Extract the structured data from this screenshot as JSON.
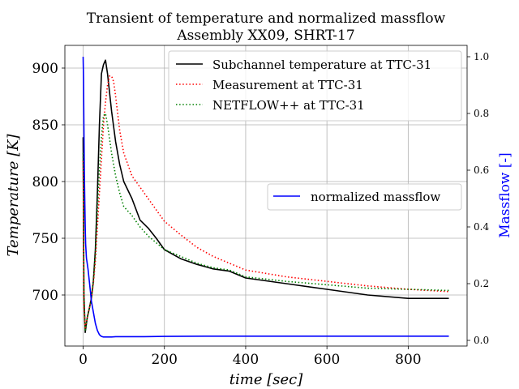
{
  "chart_data": {
    "type": "line",
    "title": "Transient of temperature and normalized massflow",
    "subtitle": "Assembly XX09, SHRT-17",
    "xlabel": "time [sec]",
    "ylabel": "Temperature [K]",
    "ylabel_right": "Massflow [-]",
    "xlim": [
      -45,
      945
    ],
    "ylim": [
      655,
      920
    ],
    "ylim_right": [
      -0.02,
      1.04
    ],
    "xticks": [
      0,
      200,
      400,
      600,
      800
    ],
    "yticks": [
      700,
      750,
      800,
      850,
      900
    ],
    "yticks_right": [
      0.0,
      0.2,
      0.4,
      0.6,
      0.8,
      1.0
    ],
    "ytick_labels_right": [
      "0.0",
      "0.2",
      "0.4",
      "0.6",
      "0.8",
      "1.0"
    ],
    "grid": true,
    "legend_placement": "top-right",
    "legend_right_placement": "center-right",
    "series": [
      {
        "name": "Subchannel temperature at TTC-31",
        "axis": "left",
        "color": "#000000",
        "style": "solid",
        "x": [
          0,
          2,
          5,
          10,
          15,
          20,
          25,
          30,
          35,
          40,
          45,
          50,
          55,
          60,
          70,
          80,
          90,
          100,
          120,
          140,
          160,
          180,
          200,
          240,
          280,
          320,
          360,
          400,
          500,
          600,
          700,
          800,
          900
        ],
        "y": [
          839,
          700,
          667,
          680,
          688,
          697,
          712,
          740,
          790,
          850,
          895,
          903,
          907,
          895,
          862,
          835,
          815,
          800,
          785,
          766,
          759,
          750,
          740,
          732,
          727,
          723,
          721,
          715,
          710,
          705,
          700,
          697,
          697
        ]
      },
      {
        "name": "Measurement at TTC-31",
        "axis": "left",
        "color": "#ff0000",
        "style": "dotted",
        "x": [
          0,
          2,
          5,
          10,
          15,
          20,
          25,
          30,
          35,
          40,
          45,
          50,
          55,
          60,
          65,
          70,
          75,
          80,
          90,
          100,
          110,
          120,
          140,
          160,
          180,
          200,
          240,
          280,
          320,
          360,
          400,
          500,
          600,
          700,
          800,
          900
        ],
        "y": [
          818,
          690,
          670,
          680,
          688,
          696,
          710,
          730,
          760,
          790,
          820,
          850,
          870,
          885,
          893,
          893,
          888,
          875,
          845,
          825,
          815,
          805,
          795,
          785,
          775,
          765,
          753,
          742,
          734,
          728,
          722,
          716,
          712,
          708,
          705,
          703
        ]
      },
      {
        "name": "NETFLOW++ at TTC-31",
        "axis": "left",
        "color": "#008000",
        "style": "dotted",
        "x": [
          0,
          2,
          5,
          10,
          15,
          20,
          25,
          30,
          35,
          40,
          45,
          50,
          55,
          60,
          70,
          80,
          90,
          100,
          120,
          140,
          160,
          180,
          200,
          240,
          280,
          320,
          360,
          400,
          500,
          600,
          700,
          800,
          900
        ],
        "y": [
          825,
          695,
          668,
          680,
          688,
          696,
          712,
          735,
          775,
          810,
          840,
          858,
          860,
          850,
          825,
          805,
          790,
          778,
          770,
          760,
          752,
          746,
          740,
          734,
          728,
          724,
          722,
          716,
          712,
          709,
          706,
          705,
          704
        ]
      },
      {
        "name": "normalized massflow",
        "axis": "right",
        "color": "#0000ff",
        "style": "solid",
        "x": [
          0,
          1,
          2,
          3,
          4,
          5,
          6,
          8,
          10,
          12,
          15,
          18,
          20,
          25,
          30,
          35,
          40,
          45,
          50,
          55,
          60,
          70,
          80,
          100,
          120,
          150,
          200,
          300,
          400,
          500,
          600,
          700,
          800,
          900
        ],
        "y": [
          1.0,
          0.92,
          0.75,
          0.6,
          0.5,
          0.4,
          0.34,
          0.29,
          0.27,
          0.25,
          0.21,
          0.17,
          0.14,
          0.1,
          0.06,
          0.035,
          0.02,
          0.014,
          0.012,
          0.012,
          0.012,
          0.012,
          0.013,
          0.013,
          0.013,
          0.013,
          0.014,
          0.015,
          0.015,
          0.015,
          0.015,
          0.015,
          0.015,
          0.015
        ]
      }
    ]
  }
}
